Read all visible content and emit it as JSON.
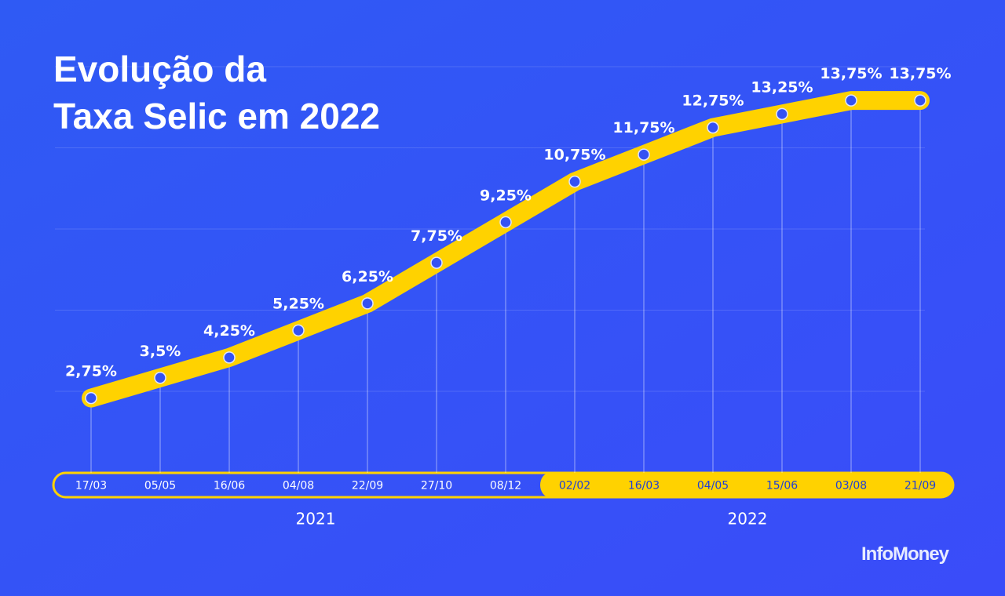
{
  "chart_data": {
    "type": "line",
    "title_lines": [
      "Evolução da",
      "Taxa Selic em 2022"
    ],
    "categories": [
      "17/03",
      "05/05",
      "16/06",
      "04/08",
      "22/09",
      "27/10",
      "08/12",
      "02/02",
      "16/03",
      "04/05",
      "15/06",
      "03/08",
      "21/09"
    ],
    "values": [
      2.75,
      3.5,
      4.25,
      5.25,
      6.25,
      7.75,
      9.25,
      10.75,
      11.75,
      12.75,
      13.25,
      13.75,
      13.75
    ],
    "value_labels": [
      "2,75%",
      "3,5%",
      "4,25%",
      "5,25%",
      "6,25%",
      "7,75%",
      "9,25%",
      "10,75%",
      "11,75%",
      "12,75%",
      "13,25%",
      "13,75%",
      "13,75%"
    ],
    "x_groups": [
      {
        "label": "2021",
        "size": 7
      },
      {
        "label": "2022",
        "size": 6
      }
    ],
    "color": "#ffd200",
    "ylim": [
      0,
      16
    ],
    "ygrid": [
      3,
      6,
      9,
      12,
      15
    ],
    "grid": true,
    "source": "InfoMoney"
  }
}
